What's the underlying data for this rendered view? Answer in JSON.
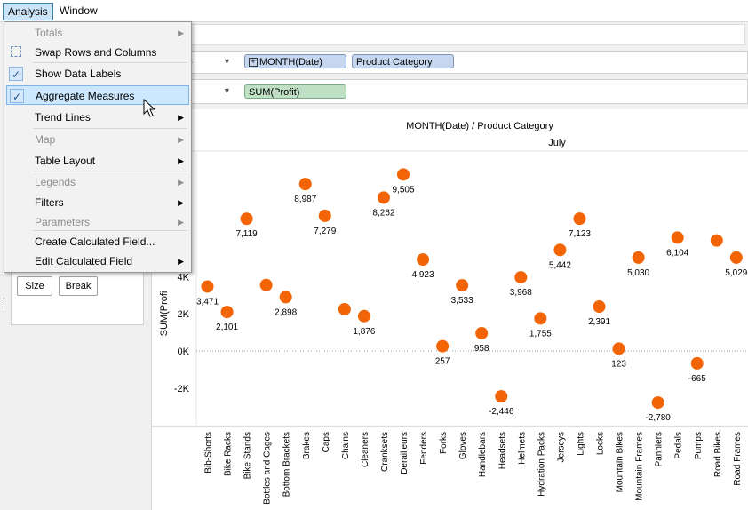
{
  "menubar": {
    "items": [
      {
        "label": "Analysis"
      },
      {
        "label": "Window"
      }
    ]
  },
  "menu": {
    "items": [
      {
        "label": "Totals",
        "disabled": true,
        "submenu": true
      },
      {
        "label": "Swap Rows and Columns",
        "disabled": false,
        "submenu": false,
        "icon": "swap-icon"
      },
      {
        "label": "Show Data Labels",
        "checked": true
      },
      {
        "label": "Aggregate Measures",
        "checked": true,
        "highlighted": true
      },
      {
        "label": "Trend Lines",
        "submenu": true
      },
      {
        "label": "Map",
        "disabled": true,
        "submenu": true
      },
      {
        "label": "Table Layout",
        "submenu": true
      },
      {
        "label": "Legends",
        "disabled": true,
        "submenu": true
      },
      {
        "label": "Filters",
        "submenu": true
      },
      {
        "label": "Parameters",
        "disabled": true,
        "submenu": true
      },
      {
        "label": "Create Calculated Field..."
      },
      {
        "label": "Edit Calculated Field",
        "submenu": true
      }
    ]
  },
  "shelves": {
    "columns": {
      "label_fragment": "nns",
      "pills": [
        "MONTH(Date)",
        "Product Category"
      ],
      "expand_symbol": "+"
    },
    "rows": {
      "label_fragment": "s",
      "pills": [
        "SUM(Profit)"
      ]
    }
  },
  "marks_card": {
    "buttons": [
      "Size",
      "Break"
    ]
  },
  "chart_data": {
    "type": "scatter",
    "title": "MONTH(Date) / Product Category",
    "subtitle": "July",
    "ylabel": "SUM(Profit)",
    "ylabel_visible": "SUM(Profi",
    "ylim": [
      -4500,
      11500
    ],
    "yticks": [
      {
        "value": 4000,
        "label": "4K"
      },
      {
        "value": 2000,
        "label": "2K"
      },
      {
        "value": 0,
        "label": "0K"
      },
      {
        "value": -2000,
        "label": "-2K"
      }
    ],
    "zero_line": "dotted",
    "marker_color": "#f26405",
    "categories": [
      "Bib-Shorts",
      "Bike Racks",
      "Bike Stands",
      "Bottles and Cages",
      "Bottom Brackets",
      "Brakes",
      "Caps",
      "Chains",
      "Cleaners",
      "Cranksets",
      "Derailleurs",
      "Fenders",
      "Forks",
      "Gloves",
      "Handlebars",
      "Headsets",
      "Helmets",
      "Hydration Packs",
      "Jerseys",
      "Lights",
      "Locks",
      "Mountain Bikes",
      "Mountain Frames",
      "Panniers",
      "Pedals",
      "Pumps",
      "Road Bikes",
      "Road Frames"
    ],
    "values": [
      3471,
      2101,
      7119,
      3550,
      2898,
      8987,
      7279,
      2250,
      1876,
      8262,
      9505,
      4923,
      257,
      3533,
      958,
      -2446,
      3968,
      1755,
      5442,
      7123,
      2391,
      123,
      5030,
      -2780,
      6104,
      -665,
      5950,
      5029
    ],
    "data_labels": [
      "3,471",
      "2,101",
      "7,119",
      "",
      "2,898",
      "8,987",
      "7,279",
      "",
      "1,876",
      "8,262",
      "9,505",
      "4,923",
      "257",
      "3,533",
      "958",
      "-2,446",
      "3,968",
      "1,755",
      "5,442",
      "7,123",
      "2,391",
      "123",
      "5,030",
      "-2,780",
      "6,104",
      "-665",
      "",
      "5,029"
    ]
  }
}
